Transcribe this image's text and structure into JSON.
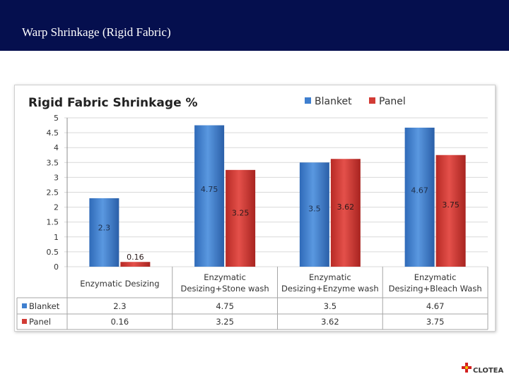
{
  "header": {
    "title": "Warp Shrinkage (Rigid Fabric)"
  },
  "logo": {
    "text": "CLOTEA"
  },
  "chart_data": {
    "type": "bar",
    "title": "Rigid Fabric Shrinkage %",
    "categories": [
      [
        "Enzymatic Desizing"
      ],
      [
        "Enzymatic",
        "Desizing+Stone wash"
      ],
      [
        "Enzymatic",
        "Desizing+Enzyme wash"
      ],
      [
        "Enzymatic",
        "Desizing+Bleach Wash"
      ]
    ],
    "series": [
      {
        "name": "Blanket",
        "values": [
          2.3,
          4.75,
          3.5,
          4.67
        ],
        "color": "#3f7fcf"
      },
      {
        "name": "Panel",
        "values": [
          0.16,
          3.25,
          3.62,
          3.75
        ],
        "color": "#d23b35"
      }
    ],
    "ylim": [
      0,
      5
    ],
    "yticks": [
      "0",
      "0.5",
      "1",
      "1.5",
      "2",
      "2.5",
      "3",
      "3.5",
      "4",
      "4.5",
      "5"
    ],
    "data_labels": [
      [
        "2.3",
        "4.75",
        "3.5",
        "4.67"
      ],
      [
        "0.16",
        "3.25",
        "3.62",
        "3.75"
      ]
    ],
    "grid": true,
    "legend": "top-right",
    "data_table": true
  }
}
